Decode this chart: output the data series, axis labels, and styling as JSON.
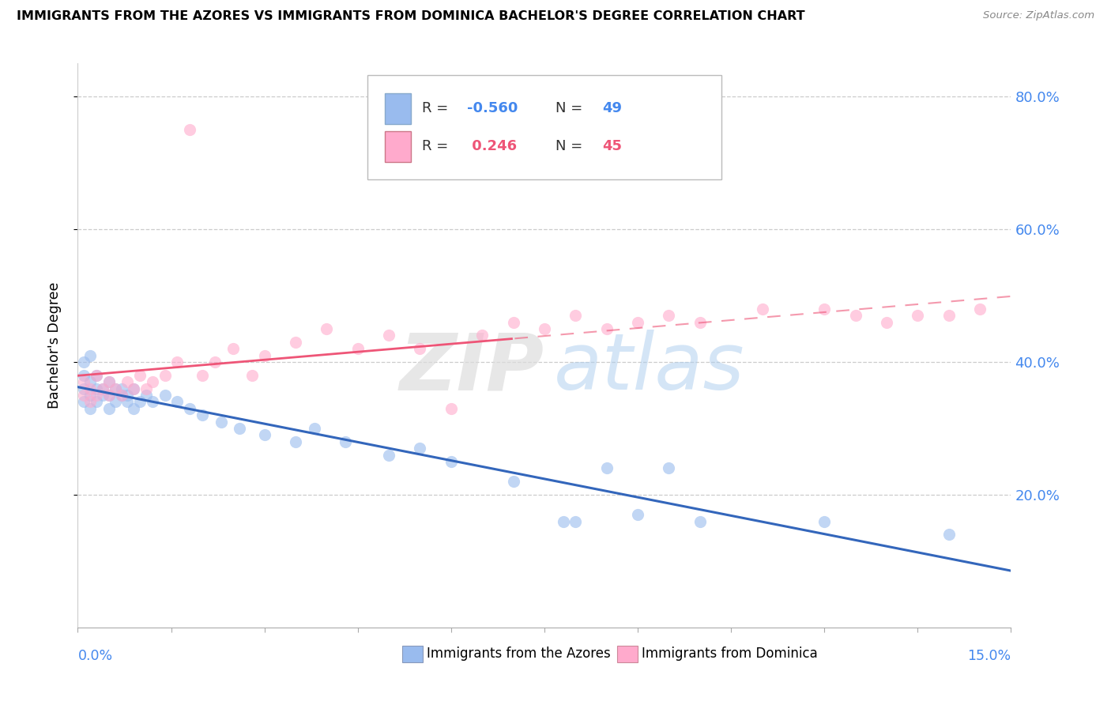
{
  "title": "IMMIGRANTS FROM THE AZORES VS IMMIGRANTS FROM DOMINICA BACHELOR'S DEGREE CORRELATION CHART",
  "source": "Source: ZipAtlas.com",
  "ylabel": "Bachelor's Degree",
  "color_azores": "#99BBEE",
  "color_dominica": "#FFAACC",
  "color_azores_line": "#3366BB",
  "color_dominica_line": "#EE5577",
  "legend1_r": "-0.560",
  "legend1_n": "49",
  "legend2_r": "0.246",
  "legend2_n": "45",
  "tick_color": "#4488EE",
  "xmin": 0.0,
  "xmax": 0.15,
  "ymin": 0.0,
  "ymax": 0.85,
  "yticks": [
    0.2,
    0.4,
    0.6,
    0.8
  ],
  "ytick_labels": [
    "20.0%",
    "40.0%",
    "60.0%",
    "80.0%"
  ],
  "azores_x": [
    0.001,
    0.001,
    0.001,
    0.001,
    0.002,
    0.002,
    0.002,
    0.002,
    0.003,
    0.003,
    0.003,
    0.004,
    0.004,
    0.005,
    0.005,
    0.005,
    0.006,
    0.006,
    0.007,
    0.007,
    0.008,
    0.008,
    0.009,
    0.009,
    0.01,
    0.011,
    0.012,
    0.014,
    0.016,
    0.018,
    0.02,
    0.023,
    0.026,
    0.03,
    0.035,
    0.038,
    0.043,
    0.05,
    0.055,
    0.06,
    0.07,
    0.078,
    0.08,
    0.085,
    0.09,
    0.095,
    0.1,
    0.12,
    0.14
  ],
  "azores_y": [
    0.36,
    0.38,
    0.34,
    0.4,
    0.35,
    0.37,
    0.33,
    0.41,
    0.36,
    0.38,
    0.34,
    0.36,
    0.35,
    0.37,
    0.35,
    0.33,
    0.36,
    0.34,
    0.35,
    0.36,
    0.34,
    0.35,
    0.36,
    0.33,
    0.34,
    0.35,
    0.34,
    0.35,
    0.34,
    0.33,
    0.32,
    0.31,
    0.3,
    0.29,
    0.28,
    0.3,
    0.28,
    0.26,
    0.27,
    0.25,
    0.22,
    0.16,
    0.16,
    0.24,
    0.17,
    0.24,
    0.16,
    0.16,
    0.14
  ],
  "dominica_x": [
    0.001,
    0.001,
    0.002,
    0.002,
    0.003,
    0.003,
    0.004,
    0.005,
    0.005,
    0.006,
    0.007,
    0.008,
    0.009,
    0.01,
    0.011,
    0.012,
    0.014,
    0.016,
    0.018,
    0.02,
    0.022,
    0.025,
    0.028,
    0.03,
    0.035,
    0.04,
    0.045,
    0.05,
    0.055,
    0.06,
    0.065,
    0.07,
    0.075,
    0.08,
    0.085,
    0.09,
    0.095,
    0.1,
    0.11,
    0.12,
    0.125,
    0.13,
    0.135,
    0.14,
    0.145
  ],
  "dominica_y": [
    0.37,
    0.35,
    0.36,
    0.34,
    0.38,
    0.35,
    0.36,
    0.37,
    0.35,
    0.36,
    0.35,
    0.37,
    0.36,
    0.38,
    0.36,
    0.37,
    0.38,
    0.4,
    0.75,
    0.38,
    0.4,
    0.42,
    0.38,
    0.41,
    0.43,
    0.45,
    0.42,
    0.44,
    0.42,
    0.33,
    0.44,
    0.46,
    0.45,
    0.47,
    0.45,
    0.46,
    0.47,
    0.46,
    0.48,
    0.48,
    0.47,
    0.46,
    0.47,
    0.47,
    0.48
  ]
}
